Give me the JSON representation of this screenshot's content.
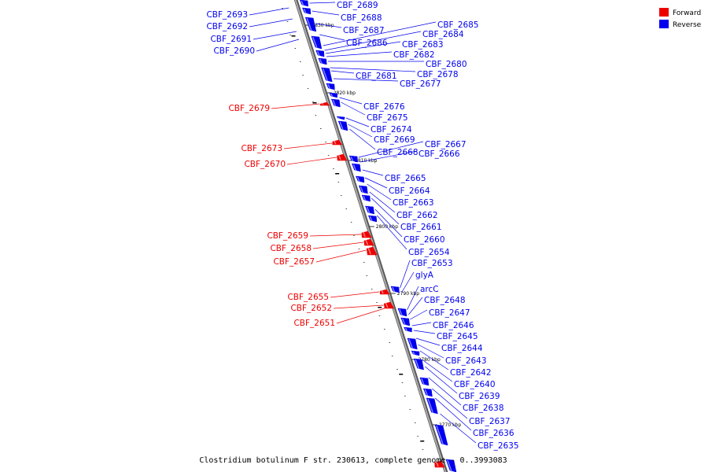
{
  "caption": "Clostridium botulinum F str. 230613, complete genome - 0..3993083",
  "legend": [
    {
      "label": "Forward",
      "color": "#ee0000"
    },
    {
      "label": "Reverse",
      "color": "#0000ee"
    }
  ],
  "colors": {
    "forward": "#ee0000",
    "reverse": "#0000ee",
    "backbone": "#888888"
  },
  "ticks": [
    "2830 kbp",
    "2820 kbp",
    "2810 kbp",
    "2800 kbp",
    "2790 kbp",
    "2780 kbp",
    "2770 kbp"
  ],
  "genes_left": [
    "CBF_2693",
    "CBF_2692",
    "CBF_2691",
    "CBF_2690",
    "CBF_2679",
    "CBF_2673",
    "CBF_2670",
    "CBF_2659",
    "CBF_2658",
    "CBF_2657",
    "CBF_2655",
    "CBF_2652",
    "CBF_2651"
  ],
  "genes_right": [
    "CBF_2689",
    "CBF_2688",
    "CBF_2687",
    "CBF_2686",
    "CBF_2685",
    "CBF_2684",
    "CBF_2683",
    "CBF_2682",
    "CBF_2681",
    "CBF_2680",
    "CBF_2678",
    "CBF_2677",
    "CBF_2676",
    "CBF_2675",
    "CBF_2674",
    "CBF_2669",
    "CBF_2668",
    "CBF_2667",
    "CBF_2666",
    "CBF_2665",
    "CBF_2664",
    "CBF_2663",
    "CBF_2662",
    "CBF_2661",
    "CBF_2660",
    "CBF_2654",
    "CBF_2653",
    "glyA",
    "arcC",
    "CBF_2648",
    "CBF_2647",
    "CBF_2646",
    "CBF_2645",
    "CBF_2644",
    "CBF_2643",
    "CBF_2642",
    "CBF_2640",
    "CBF_2639",
    "CBF_2638",
    "CBF_2637",
    "CBF_2636",
    "CBF_2635"
  ]
}
